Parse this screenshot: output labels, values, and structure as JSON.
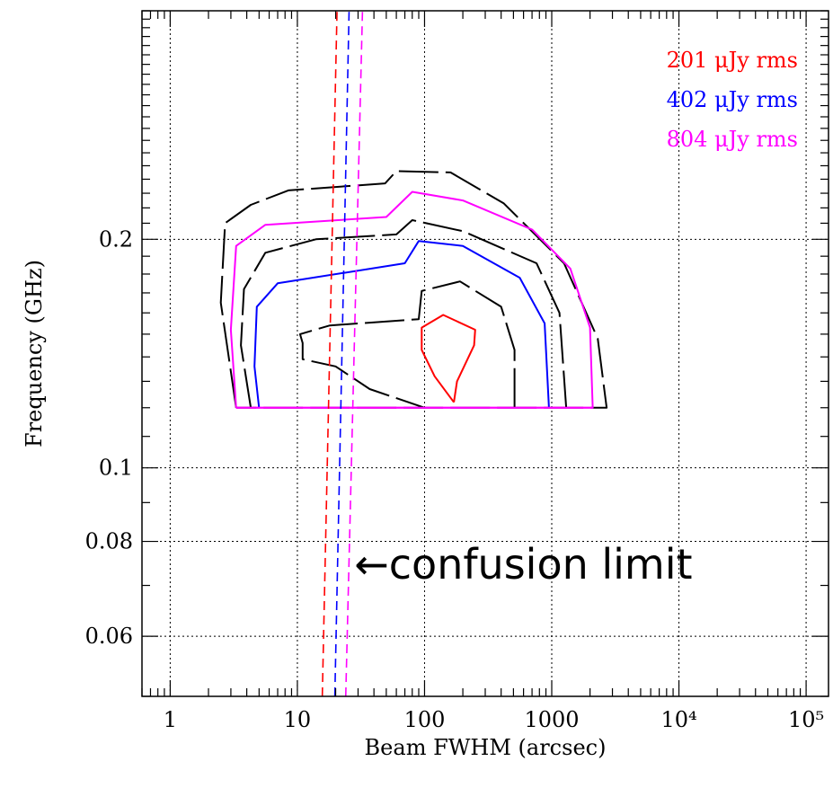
{
  "chart_data": {
    "type": "line",
    "title": "",
    "xlabel": "Beam FWHM (arcsec)",
    "ylabel": "Frequency (GHz)",
    "x_scale": "log",
    "y_scale": "log",
    "xlim": [
      0.6,
      150000
    ],
    "ylim": [
      0.05,
      0.4
    ],
    "grid": true,
    "legend_position": "top-right",
    "x_ticks": [
      {
        "value": 1,
        "label": "1"
      },
      {
        "value": 10,
        "label": "10"
      },
      {
        "value": 100,
        "label": "100"
      },
      {
        "value": 1000,
        "label": "1000"
      },
      {
        "value": 10000,
        "label": "10⁴"
      },
      {
        "value": 100000,
        "label": "10⁵"
      }
    ],
    "y_ticks": [
      {
        "value": 0.2,
        "label": "0.2"
      },
      {
        "value": 0.1,
        "label": "0.1"
      },
      {
        "value": 0.08,
        "label": "0.08"
      },
      {
        "value": 0.06,
        "label": "0.06"
      }
    ],
    "legend": [
      {
        "label": "201 μJy rms",
        "color": "#ff0000"
      },
      {
        "label": "402 μJy rms",
        "color": "#0000ff"
      },
      {
        "label": "804 μJy rms",
        "color": "#ff00ff"
      }
    ],
    "annotation": {
      "text": "←confusion limit",
      "x": 28,
      "y": 0.075
    },
    "confusion_lines": [
      {
        "color": "#ff0000",
        "points": [
          [
            15.7,
            0.05
          ],
          [
            20.5,
            0.4
          ]
        ]
      },
      {
        "color": "#0000ff",
        "points": [
          [
            19.7,
            0.05
          ],
          [
            25.5,
            0.4
          ]
        ]
      },
      {
        "color": "#ff00ff",
        "points": [
          [
            24.0,
            0.05
          ],
          [
            32.5,
            0.4
          ]
        ]
      }
    ],
    "series": [
      {
        "color": "#000000",
        "dashed": true,
        "points": [
          [
            3.3,
            0.12
          ],
          [
            2.5,
            0.165
          ],
          [
            2.7,
            0.21
          ],
          [
            4.3,
            0.222
          ],
          [
            8.5,
            0.232
          ],
          [
            49,
            0.237
          ],
          [
            60,
            0.246
          ],
          [
            160,
            0.245
          ],
          [
            420,
            0.223
          ],
          [
            1250,
            0.186
          ],
          [
            2300,
            0.148
          ],
          [
            2700,
            0.12
          ],
          [
            3.3,
            0.12
          ]
        ]
      },
      {
        "color": "#ff00ff",
        "dashed": false,
        "points": [
          [
            3.3,
            0.12
          ],
          [
            3.0,
            0.152
          ],
          [
            3.3,
            0.196
          ],
          [
            5.6,
            0.209
          ],
          [
            50,
            0.214
          ],
          [
            80,
            0.231
          ],
          [
            200,
            0.225
          ],
          [
            700,
            0.206
          ],
          [
            1400,
            0.183
          ],
          [
            2000,
            0.153
          ],
          [
            2100,
            0.12
          ],
          [
            3.3,
            0.12
          ]
        ]
      },
      {
        "color": "#000000",
        "dashed": true,
        "points": [
          [
            4.3,
            0.12
          ],
          [
            3.6,
            0.145
          ],
          [
            3.8,
            0.172
          ],
          [
            5.6,
            0.192
          ],
          [
            14,
            0.2
          ],
          [
            60,
            0.203
          ],
          [
            80,
            0.212
          ],
          [
            200,
            0.205
          ],
          [
            760,
            0.186
          ],
          [
            1150,
            0.16
          ],
          [
            1300,
            0.12
          ]
        ]
      },
      {
        "color": "#0000ff",
        "dashed": false,
        "points": [
          [
            5.0,
            0.12
          ],
          [
            4.6,
            0.136
          ],
          [
            4.8,
            0.163
          ],
          [
            7.0,
            0.175
          ],
          [
            70,
            0.186
          ],
          [
            90,
            0.199
          ],
          [
            200,
            0.196
          ],
          [
            560,
            0.178
          ],
          [
            880,
            0.155
          ],
          [
            950,
            0.12
          ]
        ]
      },
      {
        "color": "#000000",
        "dashed": true,
        "points": [
          [
            510,
            0.12
          ],
          [
            510,
            0.143
          ],
          [
            400,
            0.163
          ],
          [
            190,
            0.176
          ],
          [
            95,
            0.171
          ],
          [
            90,
            0.157
          ],
          [
            18,
            0.154
          ],
          [
            10.5,
            0.15
          ],
          [
            11,
            0.146
          ],
          [
            11,
            0.139
          ],
          [
            20,
            0.136
          ],
          [
            37,
            0.127
          ],
          [
            100,
            0.12
          ]
        ]
      },
      {
        "color": "#ff0000",
        "dashed": false,
        "points": [
          [
            170,
            0.122
          ],
          [
            120,
            0.132
          ],
          [
            95,
            0.143
          ],
          [
            95,
            0.153
          ],
          [
            140,
            0.159
          ],
          [
            250,
            0.152
          ],
          [
            245,
            0.145
          ],
          [
            180,
            0.13
          ],
          [
            170,
            0.122
          ]
        ]
      },
      {
        "color": "#ff00ff",
        "dashed": false,
        "points": [
          [
            3.3,
            0.12
          ],
          [
            2100,
            0.12
          ]
        ]
      }
    ]
  }
}
